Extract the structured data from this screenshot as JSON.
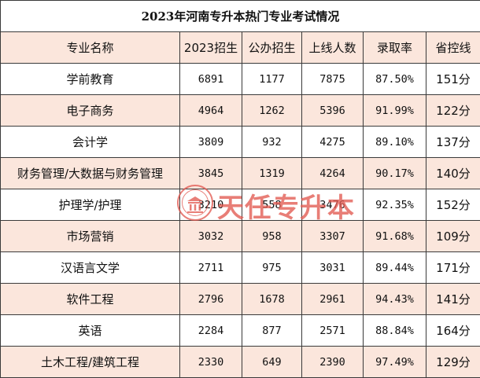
{
  "title": "2023年河南专升本热门专业考试情况",
  "headers": [
    "专业名称",
    "2023招生",
    "公办招生",
    "上线人数",
    "录取率",
    "省控线"
  ],
  "rows": [
    [
      "学前教育",
      "6891",
      "1177",
      "7875",
      "87.50%",
      "151分"
    ],
    [
      "电子商务",
      "4964",
      "1262",
      "5396",
      "91.99%",
      "122分"
    ],
    [
      "会计学",
      "3809",
      "932",
      "4275",
      "89.10%",
      "137分"
    ],
    [
      "财务管理/大数据与财务管理",
      "3845",
      "1319",
      "4264",
      "90.17%",
      "140分"
    ],
    [
      "护理学/护理",
      "3210",
      "558",
      "3476",
      "92.35%",
      "152分"
    ],
    [
      "市场营销",
      "3032",
      "958",
      "3307",
      "91.68%",
      "109分"
    ],
    [
      "汉语言文学",
      "2711",
      "975",
      "3031",
      "89.44%",
      "171分"
    ],
    [
      "软件工程",
      "2796",
      "1678",
      "2961",
      "94.43%",
      "141分"
    ],
    [
      "英语",
      "2284",
      "877",
      "2571",
      "88.84%",
      "164分"
    ],
    [
      "土木工程/建筑工程",
      "2330",
      "649",
      "2390",
      "97.49%",
      "129分"
    ]
  ],
  "watermark": {
    "text": "天任专升本",
    "icon": "seal-logo-icon"
  },
  "colors": {
    "shade": "#fbe6dc",
    "border": "#3a3a3a",
    "watermark": "#e25a52"
  }
}
